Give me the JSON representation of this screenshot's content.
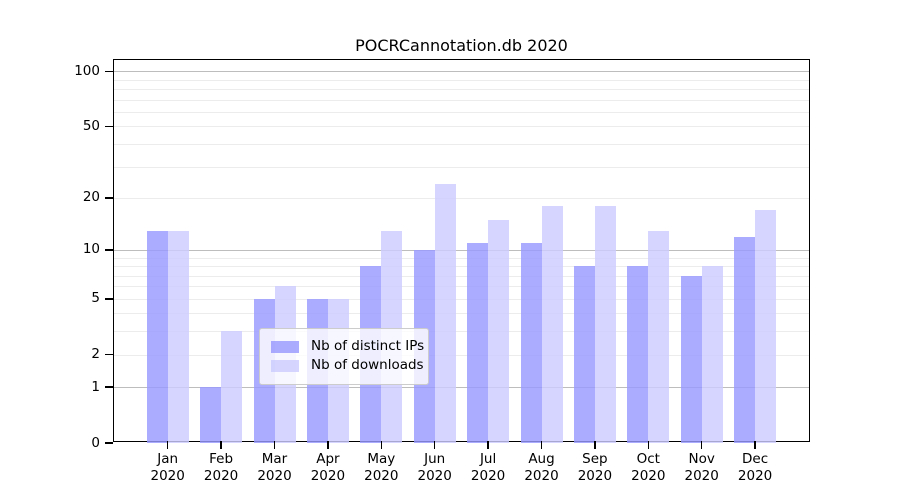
{
  "chart_data": {
    "type": "bar",
    "title": "POCRCannotation.db 2020",
    "categories": [
      "Jan 2020",
      "Feb 2020",
      "Mar 2020",
      "Apr 2020",
      "May 2020",
      "Jun 2020",
      "Jul 2020",
      "Aug 2020",
      "Sep 2020",
      "Oct 2020",
      "Nov 2020",
      "Dec 2020"
    ],
    "series": [
      {
        "name": "Nb of distinct IPs",
        "color": "#9999ff",
        "alpha": 0.82,
        "values": [
          13,
          1,
          5,
          5,
          8,
          10,
          11,
          11,
          8,
          8,
          7,
          12
        ]
      },
      {
        "name": "Nb of downloads",
        "color": "#ccccff",
        "alpha": 0.82,
        "values": [
          13,
          3,
          6,
          5,
          13,
          24,
          15,
          18,
          18,
          13,
          8,
          17
        ]
      }
    ],
    "xlabel": "",
    "ylabel": "",
    "yscale": "log1p",
    "ylim": [
      0,
      116
    ],
    "yticks": [
      0,
      1,
      2,
      5,
      10,
      20,
      50,
      100
    ],
    "major_gridlines": [
      1,
      10,
      100
    ],
    "minor_gridlines": [
      2,
      3,
      4,
      5,
      6,
      7,
      8,
      9,
      20,
      30,
      40,
      50,
      60,
      70,
      80,
      90
    ],
    "grid": true,
    "legend_position": "lower center"
  }
}
